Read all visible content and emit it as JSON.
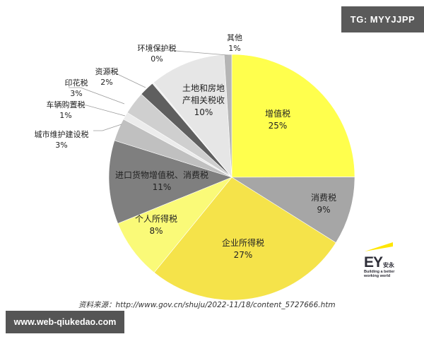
{
  "watermark_top": "TG: MYYJJPP",
  "watermark_bottom": "www.web-qiukedao.com",
  "source_text": "资料来源：http://www.gov.cn/shuju/2022-11/18/content_5727666.htm",
  "brand": {
    "mark": "EY",
    "cn": "安永",
    "tagline_1": "Building a better",
    "tagline_2": "working world",
    "beam_color": "#ffe600"
  },
  "chart_data": {
    "type": "pie",
    "title": "",
    "start_angle_deg": 0,
    "direction": "clockwise",
    "slices": [
      {
        "label": "增值税",
        "value": 25,
        "pct": "25%",
        "color": "#ffff4d"
      },
      {
        "label": "消费税",
        "value": 9,
        "pct": "9%",
        "color": "#a6a6a6"
      },
      {
        "label": "企业所得税",
        "value": 27,
        "pct": "27%",
        "color": "#f5e34a"
      },
      {
        "label": "个人所得税",
        "value": 8,
        "pct": "8%",
        "color": "#fafa78"
      },
      {
        "label": "进口货物增值税、消费税",
        "value": 11,
        "pct": "11%",
        "color": "#7f7f7f"
      },
      {
        "label": "城市维护建设税",
        "value": 3,
        "pct": "3%",
        "color": "#c0c0c0"
      },
      {
        "label": "车辆购置税",
        "value": 1,
        "pct": "1%",
        "color": "#ececec"
      },
      {
        "label": "印花税",
        "value": 3,
        "pct": "3%",
        "color": "#cfcfcf"
      },
      {
        "label": "资源税",
        "value": 2,
        "pct": "2%",
        "color": "#5f5f5f"
      },
      {
        "label": "环境保护税",
        "value": 0.2,
        "pct": "0%",
        "color": "#ededed"
      },
      {
        "label": "土地和房地产相关税收",
        "value": 10,
        "pct": "10%",
        "color": "#e6e6e6"
      },
      {
        "label": "其他",
        "value": 1,
        "pct": "1%",
        "color": "#b5b5b5"
      }
    ]
  },
  "labels": {
    "vat": {
      "name": "增值税",
      "pct": "25%"
    },
    "consumption": {
      "name": "消费税",
      "pct": "9%"
    },
    "corporate": {
      "name": "企业所得税",
      "pct": "27%"
    },
    "personal": {
      "name": "个人所得税",
      "pct": "8%"
    },
    "import": {
      "name": "进口货物增值税、消费税",
      "pct": "11%"
    },
    "urban": {
      "name": "城市维护建设税",
      "pct": "3%"
    },
    "vehicle": {
      "name": "车辆购置税",
      "pct": "1%"
    },
    "stamp": {
      "name": "印花税",
      "pct": "3%"
    },
    "resource": {
      "name": "资源税",
      "pct": "2%"
    },
    "env": {
      "name": "环境保护税",
      "pct": "0%"
    },
    "land_1": "土地和房地",
    "land_2": "产相关税收",
    "land_pct": "10%",
    "other": {
      "name": "其他",
      "pct": "1%"
    }
  }
}
